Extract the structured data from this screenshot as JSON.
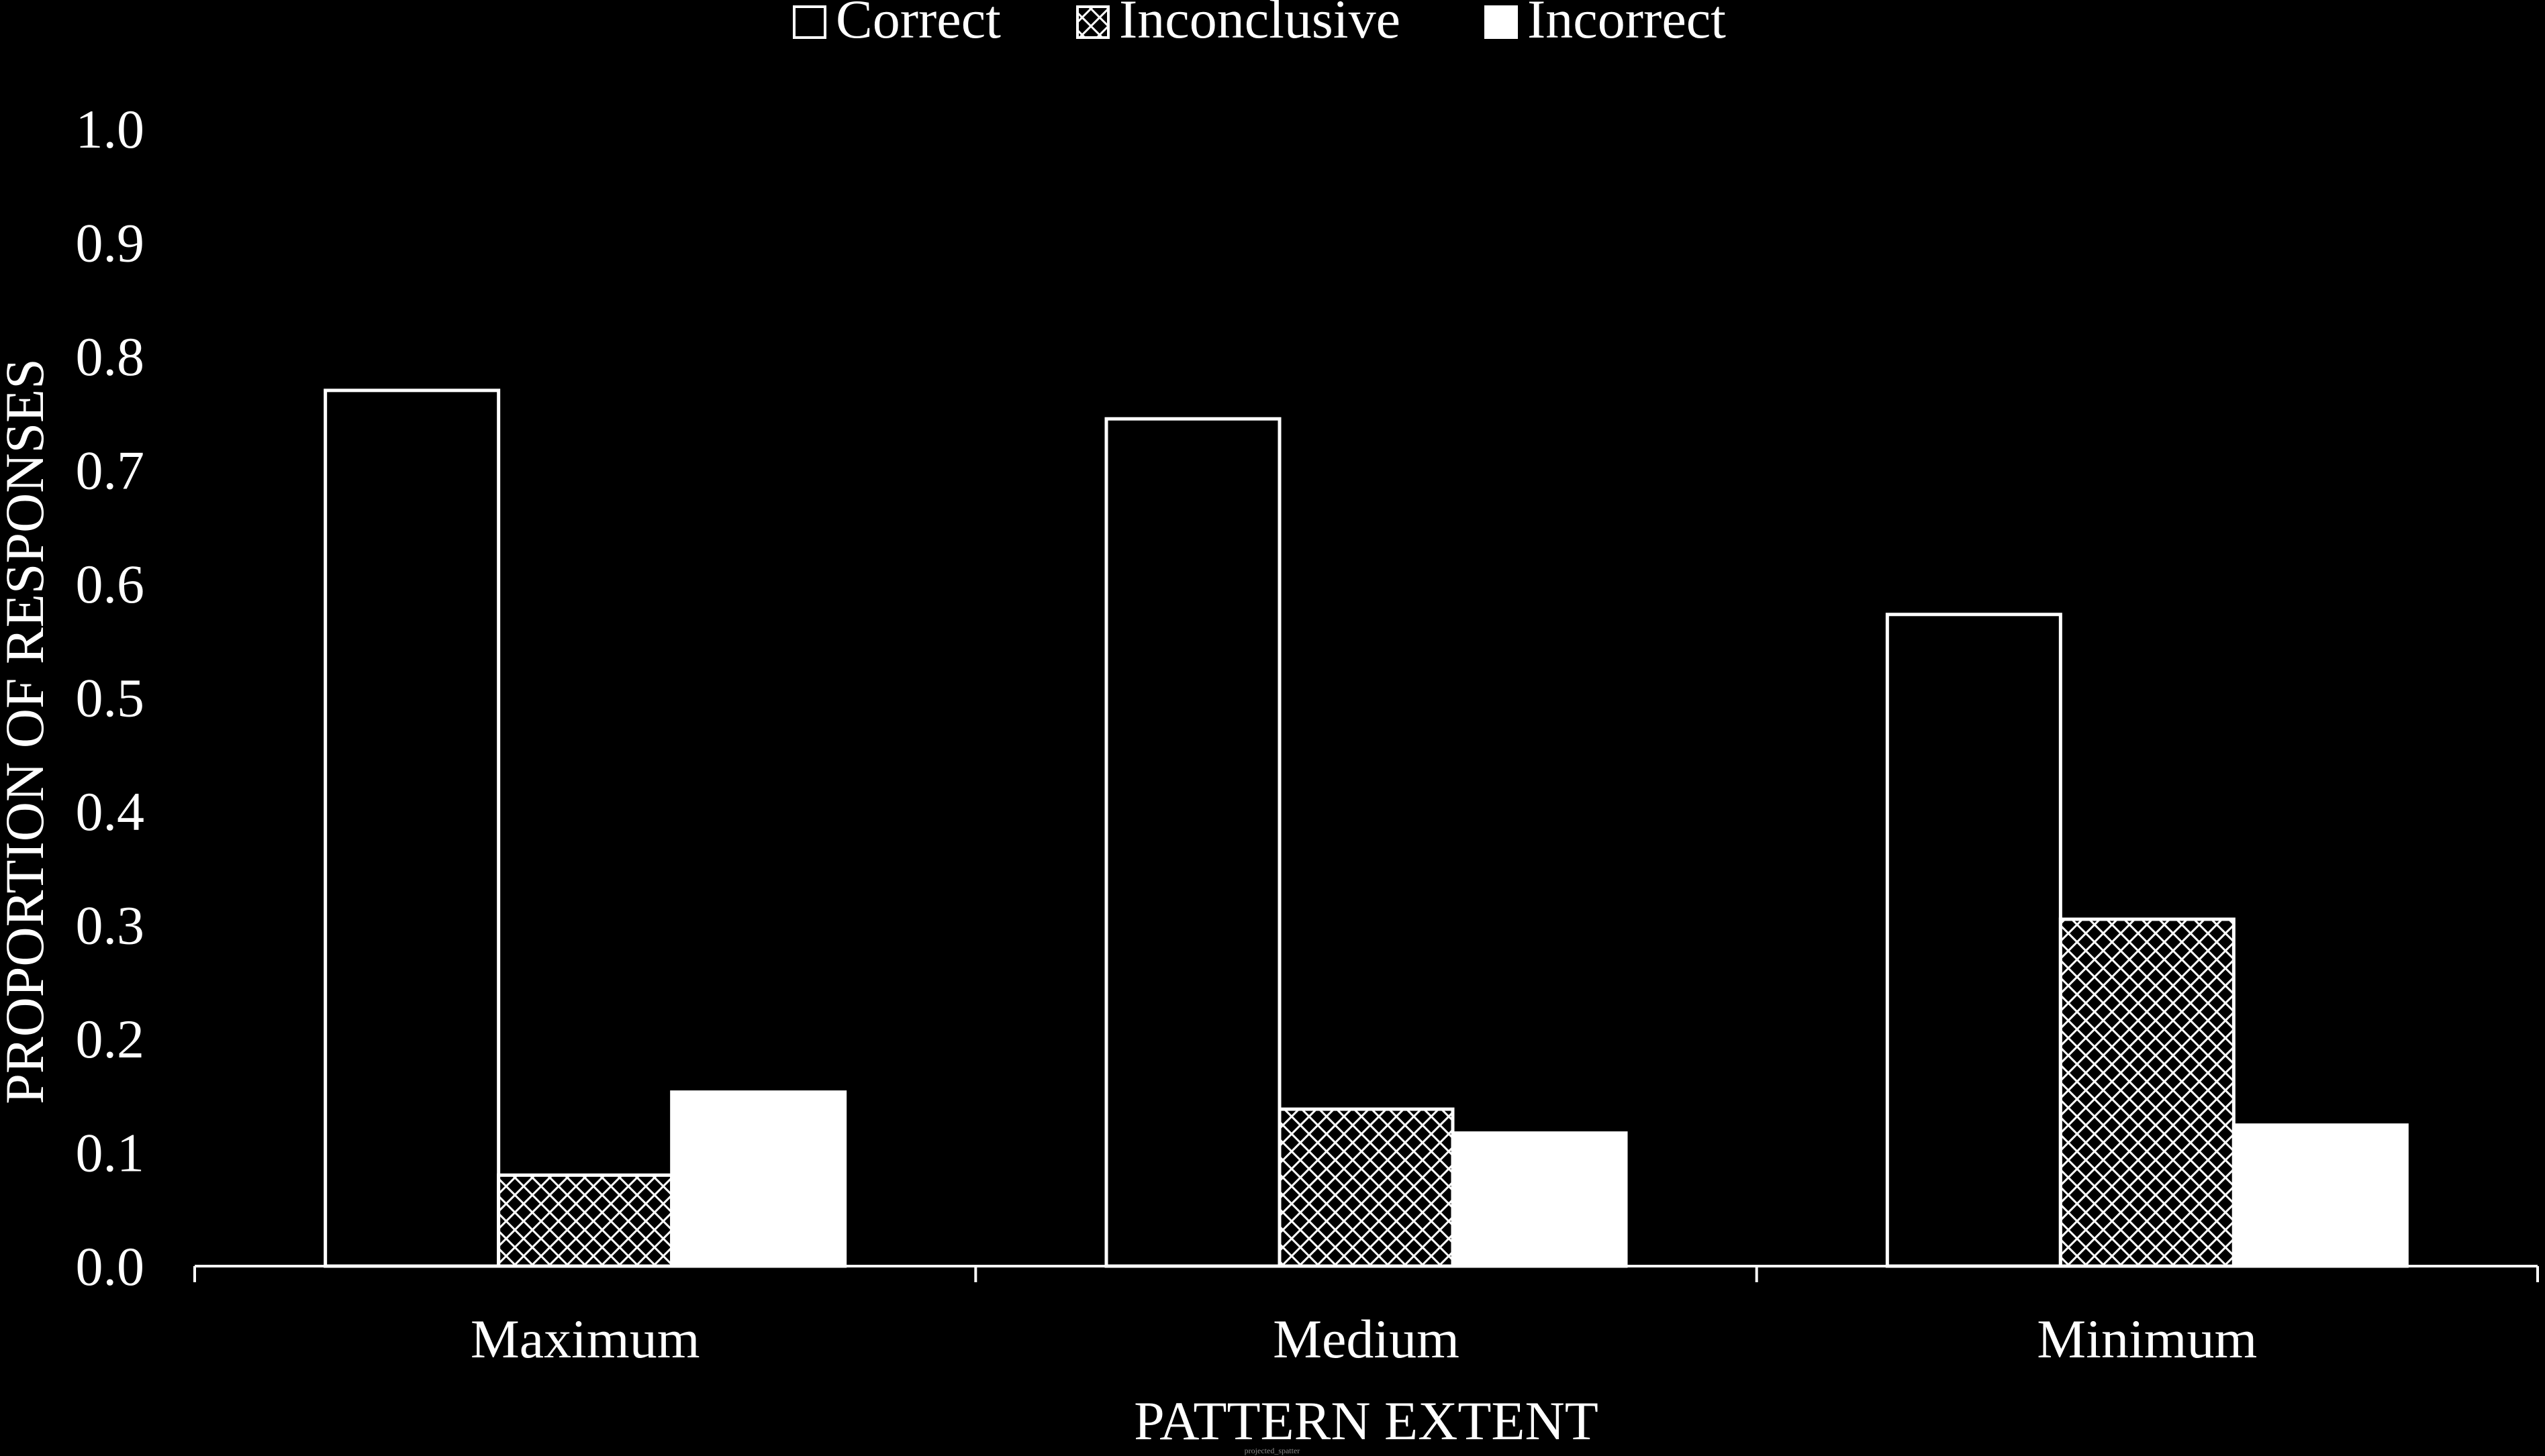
{
  "chart_data": {
    "type": "bar",
    "categories": [
      "Maximum",
      "Medium",
      "Minimum"
    ],
    "series": [
      {
        "name": "Correct",
        "values": [
          0.77,
          0.745,
          0.573
        ],
        "fill": "outline"
      },
      {
        "name": "Inconclusive",
        "values": [
          0.08,
          0.138,
          0.305
        ],
        "fill": "crosshatch"
      },
      {
        "name": "Incorrect",
        "values": [
          0.153,
          0.117,
          0.124
        ],
        "fill": "solid"
      }
    ],
    "xlabel": "PATTERN EXTENT",
    "ylabel": "PROPORTION OF RESPONSES",
    "ylim": [
      0,
      1.0
    ],
    "yticks": [
      "0.0",
      "0.1",
      "0.2",
      "0.3",
      "0.4",
      "0.5",
      "0.6",
      "0.7",
      "0.8",
      "0.9",
      "1.0"
    ],
    "grid": false,
    "legend_position": "top-center",
    "colors": {
      "background": "#000000",
      "foreground": "#ffffff"
    }
  },
  "footer": {
    "text": "projected_spatter"
  }
}
